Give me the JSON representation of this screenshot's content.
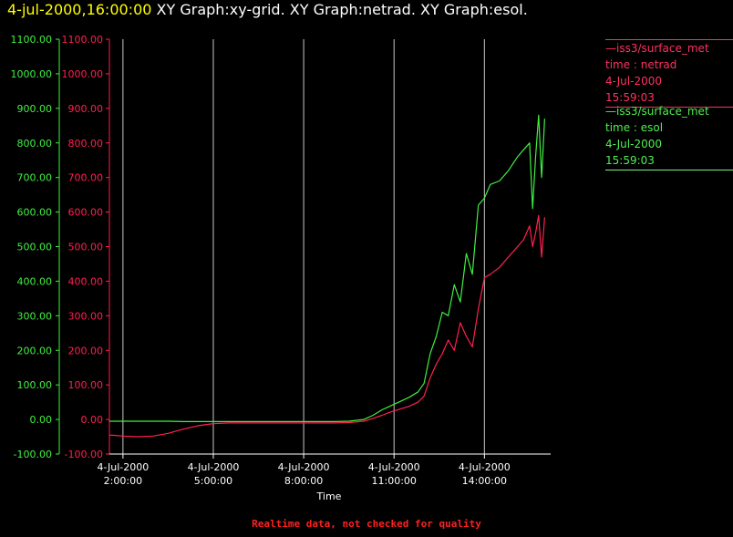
{
  "header": {
    "timestamp": "4-jul-2000,16:00:00",
    "graphs": "XY Graph:xy-grid.  XY Graph:netrad.  XY Graph:esol."
  },
  "legend": [
    {
      "line1": "—iss3/surface_met",
      "line2": "time : netrad",
      "line3": "4-Jul-2000",
      "line4": "15:59:03",
      "color": "#ff3060"
    },
    {
      "line1": "—iss3/surface_met",
      "line2": "time : esol",
      "line3": "4-Jul-2000",
      "line4": "15:59:03",
      "color": "#50f050"
    }
  ],
  "footer": "Realtime data, not checked for quality",
  "chart_data": {
    "type": "line",
    "xlabel": "Time",
    "x_ticks": [
      {
        "hour": 2,
        "date": "4-Jul-2000",
        "time": "2:00:00"
      },
      {
        "hour": 5,
        "date": "4-Jul-2000",
        "time": "5:00:00"
      },
      {
        "hour": 8,
        "date": "4-Jul-2000",
        "time": "8:00:00"
      },
      {
        "hour": 11,
        "date": "4-Jul-2000",
        "time": "11:00:00"
      },
      {
        "hour": 14,
        "date": "4-Jul-2000",
        "time": "14:00:00"
      }
    ],
    "xlim": [
      1.55,
      16.2
    ],
    "ylim": [
      -100,
      1100
    ],
    "y_ticks": [
      -100,
      0,
      100,
      200,
      300,
      400,
      500,
      600,
      700,
      800,
      900,
      1000,
      1100
    ],
    "y_tick_labels": [
      "-100.00",
      "0.00",
      "100.00",
      "200.00",
      "300.00",
      "400.00",
      "500.00",
      "600.00",
      "700.00",
      "800.00",
      "900.00",
      "1000.00",
      "1100.00"
    ],
    "vertical_grid": true,
    "series": [
      {
        "name": "netrad",
        "color": "#ff2050",
        "x": [
          1.55,
          2.0,
          2.5,
          3.0,
          3.5,
          4.0,
          4.5,
          5.0,
          5.5,
          6.0,
          7.0,
          8.0,
          9.0,
          9.5,
          10.0,
          10.3,
          10.6,
          10.9,
          11.2,
          11.5,
          11.8,
          12.0,
          12.2,
          12.4,
          12.6,
          12.8,
          13.0,
          13.2,
          13.4,
          13.6,
          13.8,
          14.0,
          14.2,
          14.5,
          14.8,
          15.1,
          15.3,
          15.5,
          15.6,
          15.7,
          15.8,
          15.9,
          16.0
        ],
        "y": [
          -45,
          -48,
          -50,
          -48,
          -40,
          -28,
          -18,
          -12,
          -10,
          -10,
          -10,
          -10,
          -10,
          -9,
          -5,
          3,
          12,
          22,
          30,
          38,
          50,
          68,
          120,
          160,
          190,
          230,
          200,
          280,
          240,
          210,
          320,
          410,
          420,
          440,
          470,
          500,
          520,
          560,
          500,
          540,
          590,
          470,
          585
        ]
      },
      {
        "name": "esol",
        "color": "#40f040",
        "x": [
          1.55,
          2.0,
          2.5,
          3.0,
          3.5,
          4.0,
          4.5,
          5.0,
          5.5,
          6.0,
          7.0,
          8.0,
          9.0,
          9.5,
          10.0,
          10.3,
          10.6,
          10.9,
          11.2,
          11.5,
          11.8,
          12.0,
          12.2,
          12.4,
          12.6,
          12.8,
          13.0,
          13.2,
          13.4,
          13.6,
          13.8,
          14.0,
          14.2,
          14.5,
          14.8,
          15.1,
          15.3,
          15.5,
          15.6,
          15.7,
          15.8,
          15.9,
          16.0
        ],
        "y": [
          -5,
          -5,
          -5,
          -5,
          -5,
          -6,
          -6,
          -6,
          -6,
          -6,
          -6,
          -6,
          -6,
          -5,
          0,
          12,
          28,
          40,
          52,
          64,
          80,
          105,
          190,
          240,
          310,
          300,
          390,
          340,
          480,
          420,
          620,
          640,
          680,
          690,
          720,
          760,
          780,
          800,
          610,
          760,
          880,
          700,
          870
        ]
      }
    ]
  }
}
